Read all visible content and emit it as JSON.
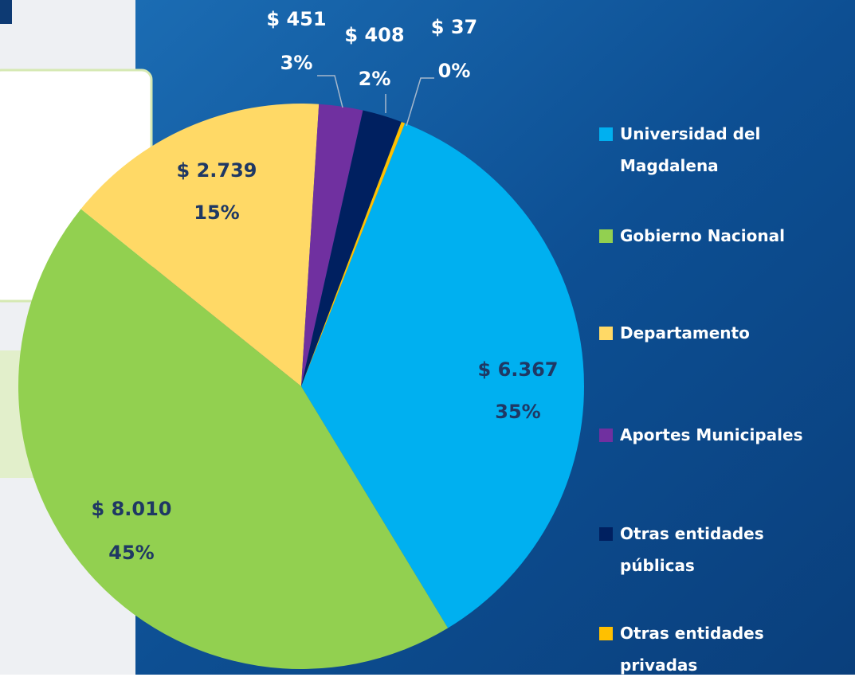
{
  "chart_data": {
    "type": "pie",
    "categories": [
      "Universidad del Magdalena",
      "Gobierno Nacional",
      "Departamento",
      "Aportes Municipales",
      "Otras entidades públicas",
      "Otras entidades privadas"
    ],
    "values": [
      6367,
      8010,
      2739,
      451,
      408,
      37
    ],
    "value_labels": [
      "$ 6.367",
      "$ 8.010",
      "$ 2.739",
      "$ 451",
      "$ 408",
      "$ 37"
    ],
    "percent_labels": [
      "35%",
      "45%",
      "15%",
      "3%",
      "2%",
      "0%"
    ],
    "colors": [
      "#00b0f0",
      "#92d050",
      "#ffd966",
      "#7030a0",
      "#002060",
      "#ffc000"
    ],
    "legend": "right"
  }
}
